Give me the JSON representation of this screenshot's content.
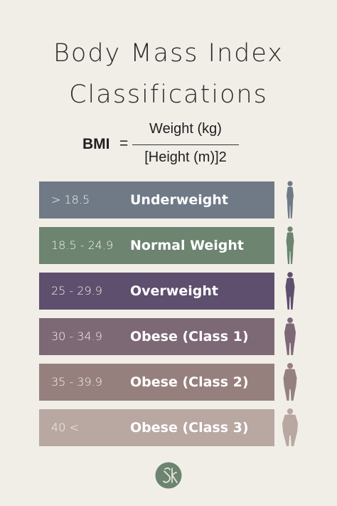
{
  "title": {
    "line1": "Body Mass Index",
    "line2": "Classifications"
  },
  "formula": {
    "label": "BMI",
    "equals": "=",
    "numerator": "Weight (kg)",
    "denominator": "[Height (m)]2"
  },
  "rows": [
    {
      "range": "> 18.5",
      "label": "Underweight",
      "color": "#6f7a86"
    },
    {
      "range": "18.5 - 24.9",
      "label": "Normal Weight",
      "color": "#6c8470"
    },
    {
      "range": "25 - 29.9",
      "label": "Overweight",
      "color": "#5d4f6d"
    },
    {
      "range": "30 - 34.9",
      "label": "Obese (Class 1)",
      "color": "#7d6876"
    },
    {
      "range": "35 - 39.9",
      "label": "Obese (Class 2)",
      "color": "#96807e"
    },
    {
      "range": "40 <",
      "label": "Obese (Class 3)",
      "color": "#b9a7a2"
    }
  ],
  "figure_icon": "body-silhouette-icon",
  "logo_icon": "monogram-logo-icon"
}
